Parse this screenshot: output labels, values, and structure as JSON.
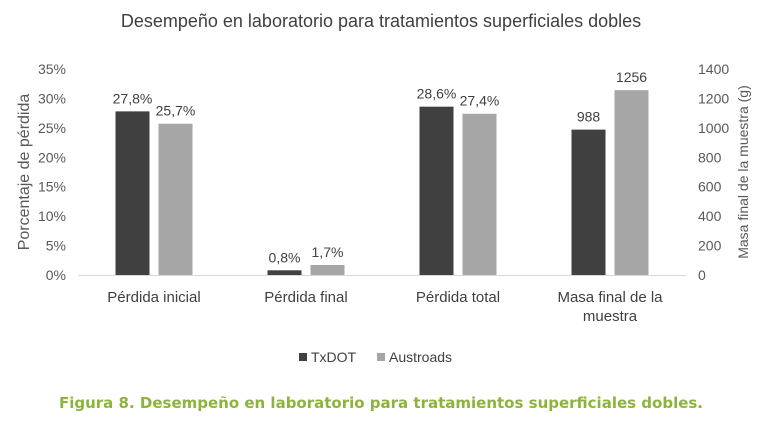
{
  "chart_data": {
    "type": "bar",
    "title": "Desempeño en laboratorio para tratamientos superficiales dobles",
    "ylabel": "Porcentaje de pérdida",
    "y2label": "Masa final de la muestra (g)",
    "ylim": [
      0,
      35
    ],
    "y2lim": [
      0,
      1400
    ],
    "yticks": [
      "0%",
      "5%",
      "10%",
      "15%",
      "20%",
      "25%",
      "30%",
      "35%"
    ],
    "y2ticks": [
      "0",
      "200",
      "400",
      "600",
      "800",
      "1000",
      "1200",
      "1400"
    ],
    "categories": [
      {
        "lines": [
          "Pérdida inicial"
        ],
        "axis": "left"
      },
      {
        "lines": [
          "Pérdida final"
        ],
        "axis": "left"
      },
      {
        "lines": [
          "Pérdida total"
        ],
        "axis": "left"
      },
      {
        "lines": [
          "Masa final de la",
          "muestra"
        ],
        "axis": "right"
      }
    ],
    "series": [
      {
        "name": "TxDOT",
        "color": "#404040",
        "values": [
          27.8,
          0.8,
          28.6,
          988
        ],
        "labels": [
          "27,8%",
          "0,8%",
          "28,6%",
          "988"
        ]
      },
      {
        "name": "Austroads",
        "color": "#a6a6a6",
        "values": [
          25.7,
          1.7,
          27.4,
          1256
        ],
        "labels": [
          "25,7%",
          "1,7%",
          "27,4%",
          "1256"
        ]
      }
    ],
    "grid": false,
    "legend": "bottom"
  },
  "caption": "Figura 8. Desempeño en laboratorio para tratamientos superficiales dobles."
}
